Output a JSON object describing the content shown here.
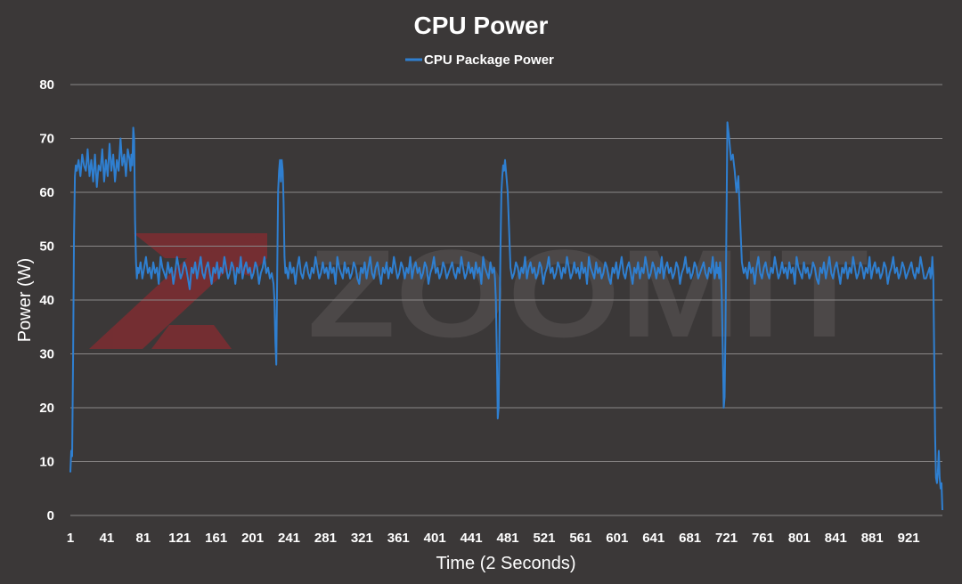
{
  "watermark": {
    "brand": "ZOOMIT",
    "colors": {
      "mark": "#a3262e",
      "text": "#5a5656"
    }
  },
  "colors": {
    "background": "#3b3838",
    "grid": "#8a8787",
    "series": "#2f7fd0",
    "text": "#ffffff"
  },
  "chart_data": {
    "type": "line",
    "title": "CPU Power",
    "xlabel": "Time (2 Seconds)",
    "ylabel": "Power (W)",
    "legend": "top-center",
    "grid": true,
    "ylim": [
      0,
      80
    ],
    "yticks": [
      0,
      10,
      20,
      30,
      40,
      50,
      60,
      70,
      80
    ],
    "xlim": [
      1,
      958
    ],
    "xtick_labels": [
      "1",
      "41",
      "81",
      "121",
      "161",
      "201",
      "241",
      "281",
      "321",
      "361",
      "401",
      "441",
      "481",
      "521",
      "561",
      "601",
      "641",
      "681",
      "721",
      "761",
      "801",
      "841",
      "881",
      "921"
    ],
    "series": [
      {
        "name": "CPU Package Power",
        "color": "#2f7fd0",
        "x": [
          1,
          2,
          3,
          4,
          5,
          6,
          7,
          8,
          10,
          12,
          14,
          16,
          18,
          20,
          22,
          24,
          26,
          28,
          30,
          32,
          34,
          36,
          38,
          40,
          42,
          44,
          46,
          48,
          50,
          52,
          54,
          56,
          58,
          60,
          62,
          64,
          66,
          67,
          68,
          69,
          70,
          71,
          72,
          73,
          74,
          75,
          76,
          78,
          80,
          82,
          84,
          86,
          88,
          90,
          92,
          94,
          96,
          98,
          100,
          102,
          104,
          106,
          108,
          110,
          112,
          114,
          116,
          118,
          120,
          122,
          124,
          126,
          128,
          130,
          132,
          134,
          136,
          138,
          140,
          142,
          144,
          146,
          148,
          150,
          152,
          154,
          156,
          158,
          160,
          162,
          164,
          166,
          168,
          170,
          172,
          174,
          176,
          178,
          180,
          182,
          184,
          186,
          188,
          190,
          192,
          194,
          196,
          198,
          200,
          202,
          204,
          206,
          208,
          210,
          212,
          214,
          216,
          218,
          220,
          222,
          224,
          225,
          226,
          227,
          228,
          229,
          230,
          231,
          232,
          233,
          234,
          235,
          236,
          237,
          238,
          240,
          242,
          244,
          246,
          248,
          250,
          252,
          254,
          256,
          258,
          260,
          262,
          264,
          266,
          268,
          270,
          272,
          274,
          276,
          278,
          280,
          282,
          284,
          286,
          288,
          290,
          292,
          294,
          296,
          298,
          300,
          302,
          304,
          306,
          308,
          310,
          312,
          314,
          316,
          318,
          320,
          322,
          324,
          326,
          328,
          330,
          332,
          334,
          336,
          338,
          340,
          342,
          344,
          346,
          348,
          350,
          352,
          354,
          356,
          358,
          360,
          362,
          364,
          366,
          368,
          370,
          372,
          374,
          376,
          378,
          380,
          382,
          384,
          386,
          388,
          390,
          392,
          394,
          396,
          398,
          400,
          402,
          404,
          406,
          408,
          410,
          412,
          414,
          416,
          418,
          420,
          422,
          424,
          426,
          428,
          430,
          432,
          434,
          436,
          438,
          440,
          442,
          444,
          446,
          448,
          450,
          452,
          454,
          456,
          458,
          460,
          462,
          464,
          466,
          467,
          468,
          469,
          470,
          471,
          472,
          473,
          474,
          475,
          476,
          477,
          478,
          479,
          480,
          481,
          482,
          484,
          486,
          488,
          490,
          492,
          494,
          496,
          498,
          500,
          502,
          504,
          506,
          508,
          510,
          512,
          514,
          516,
          518,
          520,
          522,
          524,
          526,
          528,
          530,
          532,
          534,
          536,
          538,
          540,
          542,
          544,
          546,
          548,
          550,
          552,
          554,
          556,
          558,
          560,
          562,
          564,
          566,
          568,
          570,
          572,
          574,
          576,
          578,
          580,
          582,
          584,
          586,
          588,
          590,
          592,
          594,
          596,
          598,
          600,
          602,
          604,
          606,
          608,
          610,
          612,
          614,
          616,
          618,
          620,
          622,
          624,
          626,
          628,
          630,
          632,
          634,
          636,
          638,
          640,
          642,
          644,
          646,
          648,
          650,
          652,
          654,
          656,
          658,
          660,
          662,
          664,
          666,
          668,
          670,
          672,
          674,
          676,
          678,
          680,
          682,
          684,
          686,
          688,
          690,
          692,
          694,
          696,
          698,
          700,
          702,
          704,
          706,
          707,
          708,
          709,
          710,
          711,
          712,
          713,
          714,
          715,
          716,
          717,
          718,
          719,
          720,
          721,
          722,
          724,
          726,
          728,
          730,
          732,
          734,
          736,
          738,
          740,
          742,
          744,
          746,
          748,
          750,
          752,
          754,
          756,
          758,
          760,
          762,
          764,
          766,
          768,
          770,
          772,
          774,
          776,
          778,
          780,
          782,
          784,
          786,
          788,
          790,
          792,
          794,
          796,
          798,
          800,
          802,
          804,
          806,
          808,
          810,
          812,
          814,
          816,
          818,
          820,
          822,
          824,
          826,
          828,
          830,
          832,
          834,
          836,
          838,
          840,
          842,
          844,
          846,
          848,
          850,
          852,
          854,
          856,
          858,
          860,
          862,
          864,
          866,
          868,
          870,
          872,
          874,
          876,
          878,
          880,
          882,
          884,
          886,
          888,
          890,
          892,
          894,
          896,
          898,
          900,
          902,
          904,
          906,
          908,
          910,
          912,
          914,
          916,
          918,
          920,
          922,
          924,
          926,
          928,
          930,
          932,
          934,
          936,
          938,
          940,
          942,
          944,
          945,
          946,
          947,
          948,
          949,
          950,
          951,
          952,
          953,
          954,
          955,
          956,
          957,
          958
        ],
        "y": [
          8,
          12,
          11,
          30,
          52,
          63,
          65,
          64,
          66,
          63,
          67,
          65,
          64,
          68,
          63,
          66,
          62,
          67,
          61,
          65,
          64,
          68,
          62,
          66,
          63,
          69,
          64,
          67,
          62,
          66,
          64,
          70,
          65,
          67,
          63,
          68,
          66,
          64,
          67,
          65,
          72,
          70,
          55,
          47,
          44,
          46,
          45,
          47,
          44,
          46,
          48,
          45,
          46,
          44,
          47,
          45,
          46,
          43,
          48,
          46,
          45,
          44,
          47,
          45,
          46,
          43,
          45,
          48,
          46,
          44,
          45,
          47,
          46,
          44,
          42,
          46,
          45,
          47,
          44,
          46,
          48,
          45,
          44,
          46,
          47,
          45,
          43,
          46,
          45,
          47,
          44,
          46,
          45,
          48,
          46,
          44,
          45,
          47,
          46,
          43,
          46,
          45,
          48,
          44,
          46,
          47,
          45,
          46,
          44,
          45,
          47,
          46,
          43,
          45,
          46,
          48,
          45,
          46,
          44,
          45,
          43,
          40,
          32,
          28,
          45,
          60,
          64,
          66,
          62,
          66,
          64,
          58,
          48,
          45,
          46,
          44,
          47,
          45,
          46,
          43,
          46,
          48,
          45,
          44,
          46,
          47,
          45,
          44,
          46,
          45,
          48,
          46,
          44,
          45,
          47,
          45,
          46,
          44,
          47,
          45,
          46,
          43,
          48,
          46,
          45,
          44,
          47,
          45,
          46,
          44,
          45,
          47,
          46,
          44,
          43,
          46,
          45,
          47,
          44,
          46,
          48,
          45,
          44,
          46,
          47,
          45,
          43,
          46,
          45,
          47,
          44,
          46,
          45,
          48,
          46,
          44,
          45,
          47,
          46,
          44,
          46,
          45,
          48,
          44,
          46,
          47,
          45,
          46,
          44,
          45,
          47,
          46,
          43,
          45,
          46,
          48,
          45,
          46,
          44,
          45,
          47,
          46,
          44,
          45,
          46,
          47,
          45,
          44,
          46,
          45,
          48,
          46,
          44,
          45,
          47,
          45,
          46,
          44,
          47,
          45,
          46,
          43,
          48,
          46,
          45,
          44,
          47,
          45,
          46,
          44,
          40,
          30,
          18,
          20,
          35,
          50,
          60,
          63,
          65,
          64,
          66,
          64,
          62,
          60,
          55,
          46,
          44,
          45,
          47,
          46,
          44,
          46,
          45,
          48,
          44,
          46,
          47,
          45,
          46,
          44,
          45,
          47,
          46,
          43,
          45,
          46,
          48,
          45,
          46,
          44,
          45,
          47,
          46,
          44,
          46,
          45,
          48,
          46,
          44,
          45,
          47,
          45,
          46,
          44,
          47,
          45,
          46,
          43,
          48,
          46,
          45,
          44,
          47,
          45,
          46,
          44,
          45,
          47,
          46,
          44,
          43,
          46,
          45,
          47,
          44,
          46,
          48,
          45,
          44,
          46,
          47,
          45,
          43,
          46,
          45,
          47,
          44,
          46,
          45,
          48,
          46,
          44,
          45,
          47,
          46,
          44,
          46,
          45,
          48,
          44,
          46,
          47,
          45,
          46,
          44,
          45,
          47,
          46,
          43,
          45,
          46,
          48,
          45,
          46,
          44,
          45,
          47,
          46,
          44,
          45,
          46,
          47,
          45,
          44,
          46,
          45,
          48,
          46,
          44,
          45,
          47,
          45,
          46,
          44,
          47,
          45,
          40,
          30,
          20,
          22,
          35,
          55,
          73,
          70,
          66,
          67,
          64,
          60,
          63,
          55,
          47,
          45,
          46,
          44,
          47,
          45,
          46,
          43,
          46,
          48,
          45,
          44,
          46,
          47,
          45,
          44,
          46,
          45,
          48,
          46,
          44,
          45,
          47,
          45,
          46,
          44,
          47,
          45,
          46,
          43,
          48,
          46,
          45,
          44,
          47,
          45,
          46,
          44,
          45,
          47,
          46,
          44,
          43,
          46,
          45,
          47,
          44,
          46,
          48,
          45,
          44,
          46,
          47,
          45,
          43,
          46,
          45,
          47,
          44,
          46,
          45,
          48,
          46,
          44,
          45,
          47,
          46,
          44,
          46,
          45,
          48,
          44,
          46,
          47,
          45,
          46,
          44,
          45,
          47,
          46,
          43,
          45,
          46,
          48,
          45,
          46,
          44,
          45,
          47,
          46,
          44,
          45,
          46,
          47,
          45,
          44,
          46,
          45,
          48,
          46,
          44,
          44,
          45,
          46,
          44,
          45,
          48,
          44,
          30,
          15,
          7,
          6,
          8,
          12,
          7,
          5,
          6,
          1
        ]
      }
    ]
  }
}
